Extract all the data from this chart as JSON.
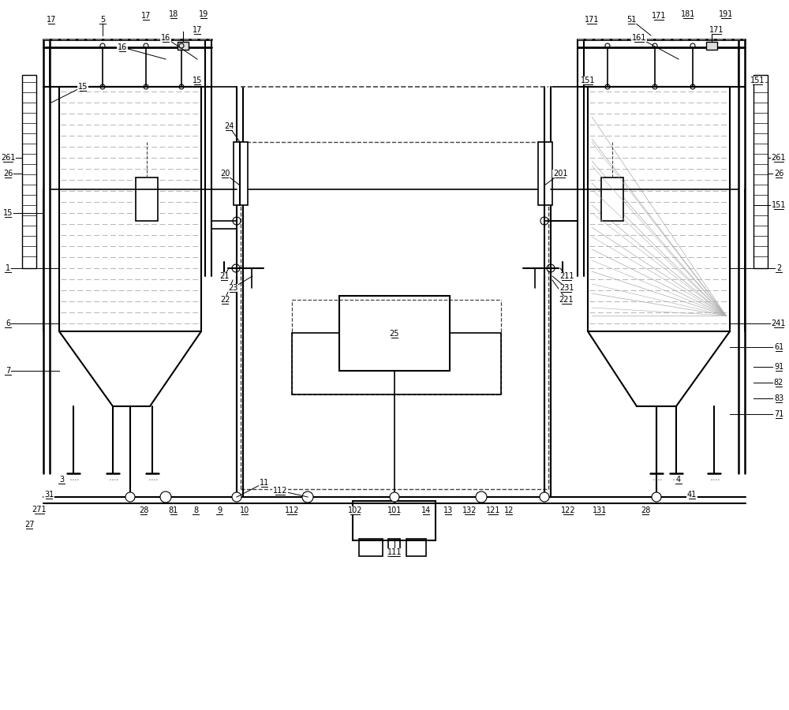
{
  "bg_color": "#ffffff",
  "lc": "#000000",
  "dc": "#444444",
  "figsize": [
    10.0,
    9.0
  ],
  "dpi": 100
}
